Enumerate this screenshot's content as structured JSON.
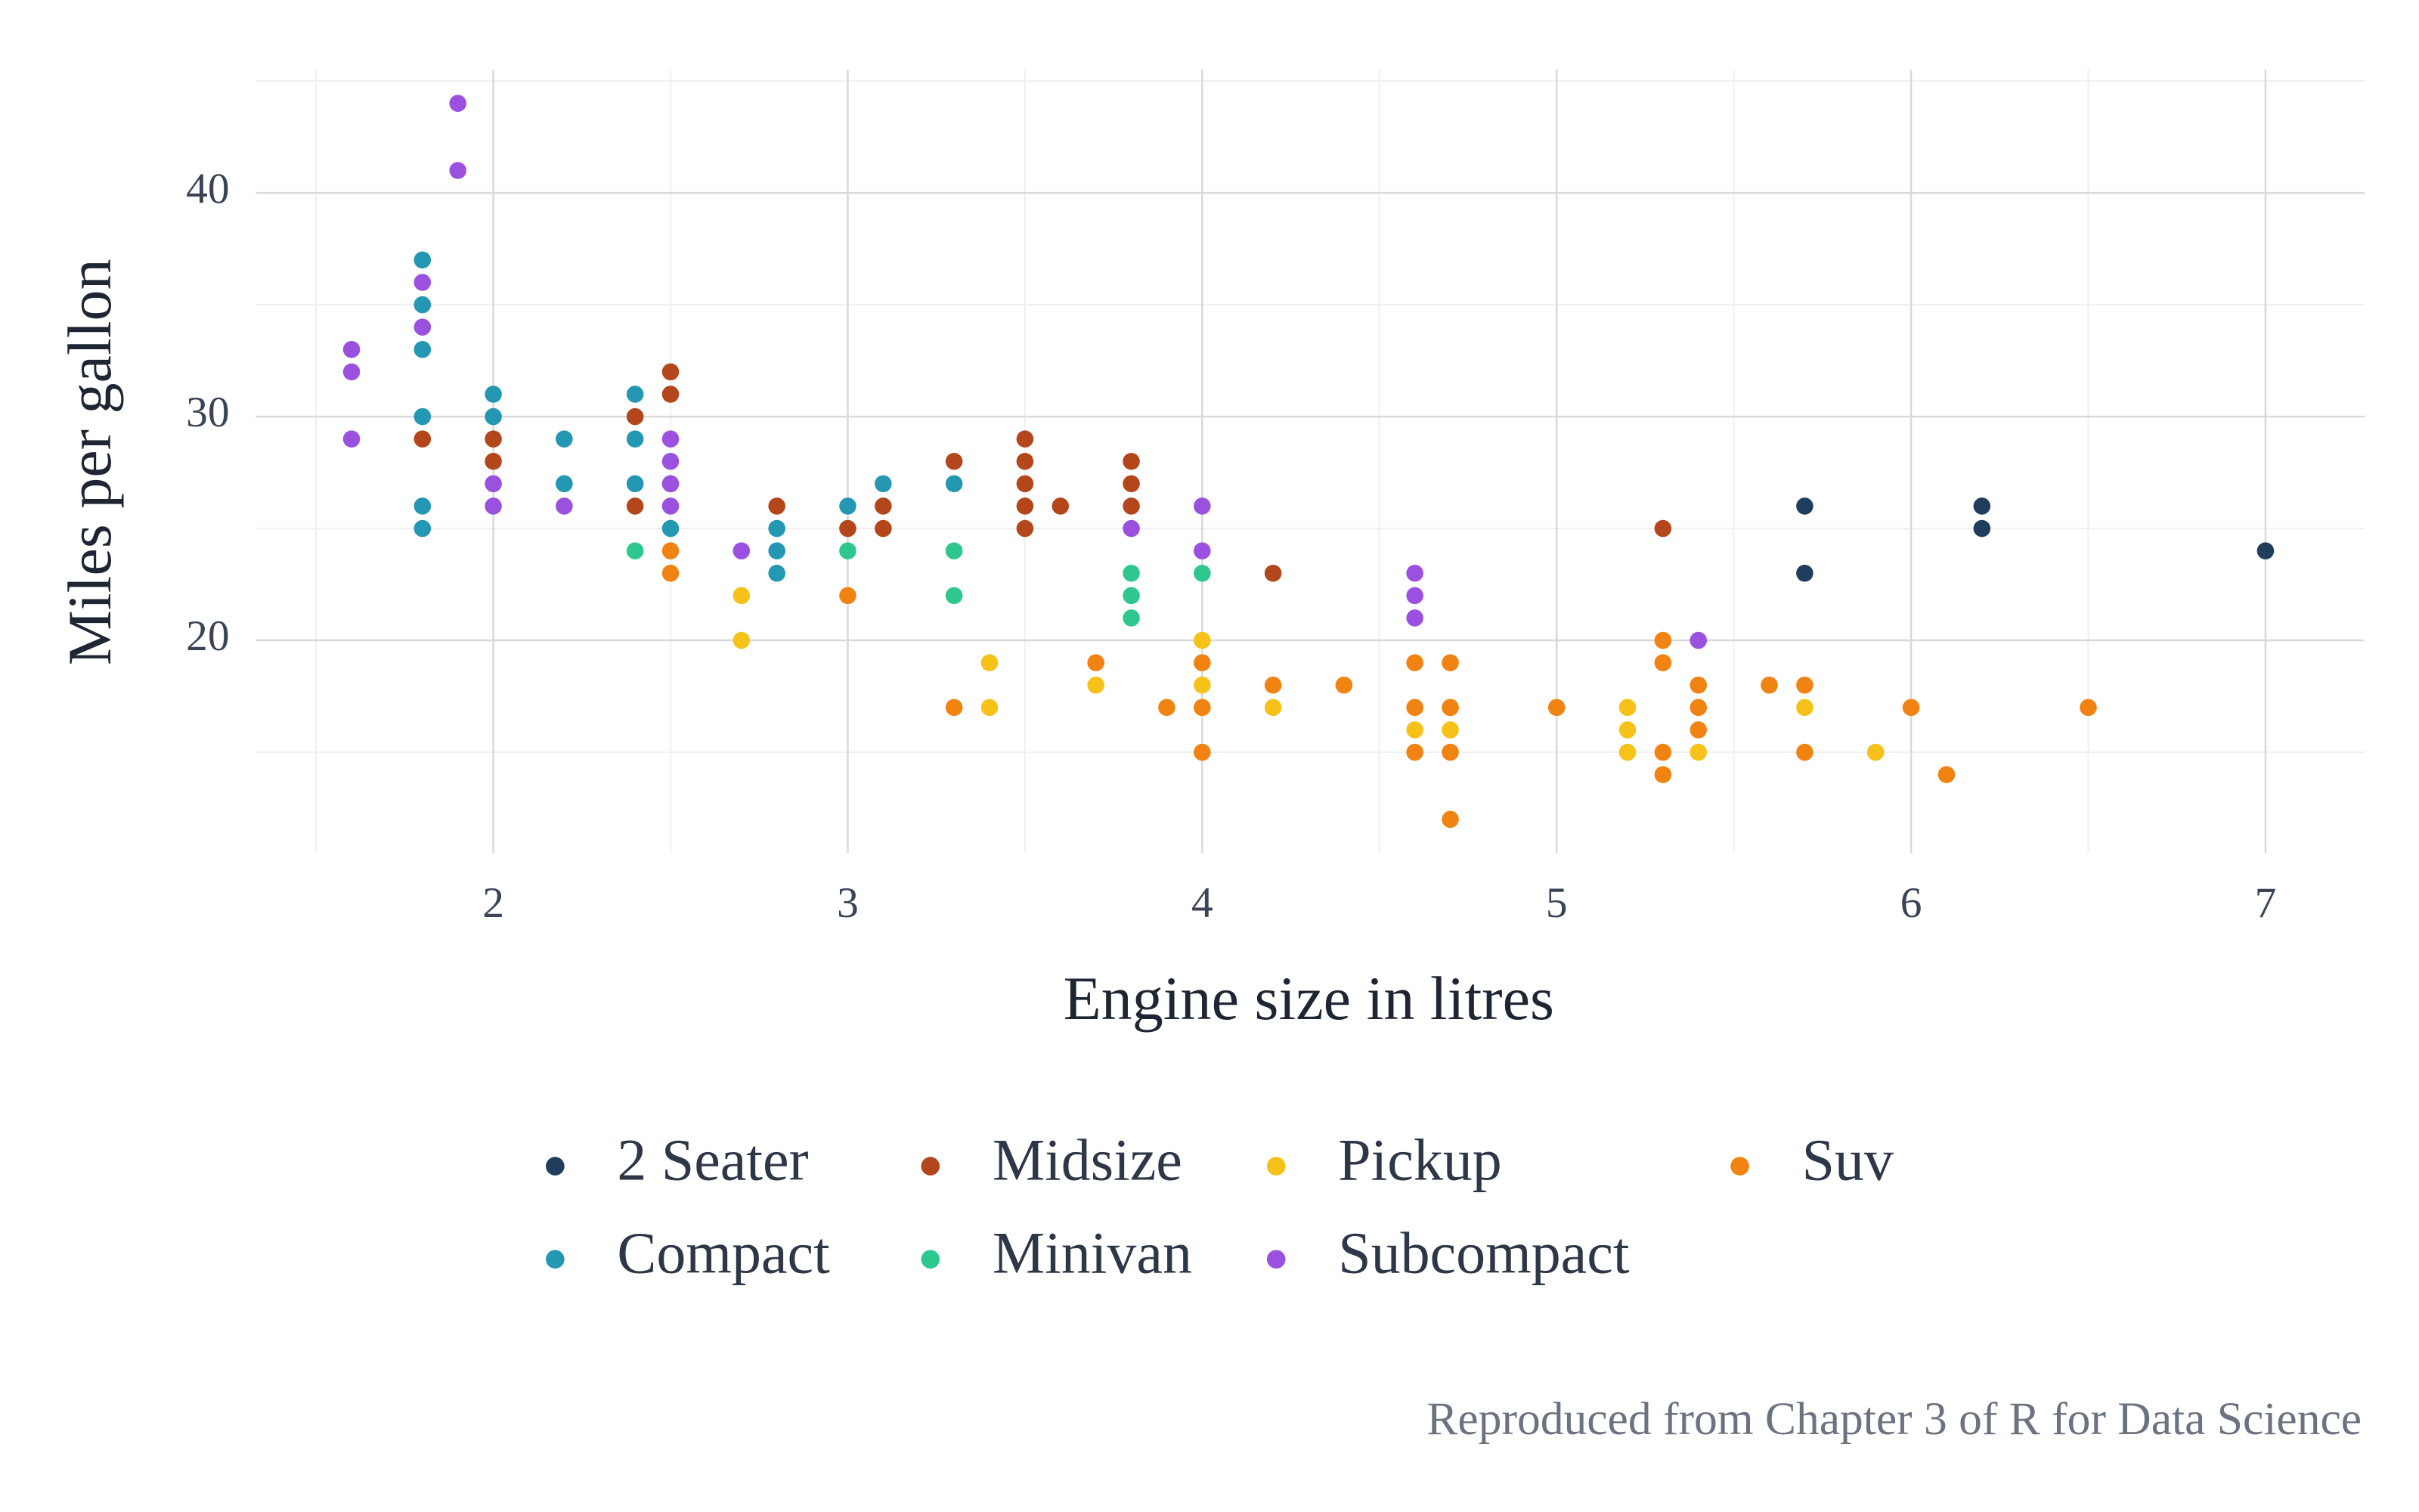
{
  "chart_data": {
    "type": "scatter",
    "x_label": "Engine size in litres",
    "y_label": "Miles per gallon",
    "caption": "Reproduced from Chapter 3 of R for Data Science",
    "xlim": [
      1.33,
      7.28
    ],
    "ylim": [
      10.5,
      45.5
    ],
    "xticks": [
      2,
      3,
      4,
      5,
      6,
      7
    ],
    "yticks": [
      20,
      30,
      40
    ],
    "x_minor_ticks": [
      1.5,
      2.5,
      3.5,
      4.5,
      5.5,
      6.5
    ],
    "y_minor_ticks": [
      15,
      25,
      35,
      45
    ],
    "grid": true,
    "legend": "bottom",
    "series": [
      {
        "name": "2 Seater",
        "color": "#1f3d5c",
        "x": [
          5.7,
          5.7,
          6.2,
          6.2,
          7.0
        ],
        "y": [
          26,
          23,
          26,
          25,
          24
        ]
      },
      {
        "name": "Compact",
        "color": "#2497b2",
        "x": [
          1.8,
          1.8,
          1.8,
          1.8,
          1.8,
          1.8,
          2.0,
          2.0,
          2.2,
          2.2,
          2.4,
          2.4,
          2.4,
          2.5,
          2.5,
          2.8,
          2.8,
          2.8,
          3.0,
          3.1,
          3.3
        ],
        "y": [
          37,
          35,
          33,
          30,
          26,
          25,
          31,
          30,
          29,
          27,
          31,
          29,
          27,
          27,
          25,
          25,
          24,
          23,
          26,
          27,
          27
        ]
      },
      {
        "name": "Midsize",
        "color": "#b4461c",
        "x": [
          1.8,
          2.0,
          2.0,
          2.4,
          2.4,
          2.5,
          2.5,
          2.8,
          3.0,
          3.1,
          3.1,
          3.3,
          3.5,
          3.5,
          3.5,
          3.5,
          3.5,
          3.6,
          3.8,
          3.8,
          3.8,
          4.2,
          5.3
        ],
        "y": [
          29,
          29,
          28,
          30,
          26,
          32,
          31,
          26,
          25,
          26,
          25,
          28,
          29,
          28,
          27,
          26,
          25,
          26,
          28,
          27,
          26,
          23,
          25
        ]
      },
      {
        "name": "Minivan",
        "color": "#2ec88e",
        "x": [
          2.4,
          3.0,
          3.3,
          3.3,
          3.8,
          3.8,
          3.8,
          4.0
        ],
        "y": [
          24,
          24,
          24,
          22,
          23,
          22,
          21,
          23
        ]
      },
      {
        "name": "Pickup",
        "color": "#f6c21a",
        "x": [
          2.7,
          2.7,
          3.4,
          3.4,
          3.7,
          4.0,
          4.0,
          4.0,
          4.2,
          4.6,
          4.6,
          4.7,
          4.7,
          5.2,
          5.2,
          5.2,
          5.4,
          5.7,
          5.9
        ],
        "y": [
          22,
          20,
          19,
          17,
          18,
          20,
          18,
          17,
          17,
          17,
          16,
          17,
          16,
          17,
          16,
          15,
          15,
          17,
          15
        ]
      },
      {
        "name": "Subcompact",
        "color": "#9b51df",
        "x": [
          1.6,
          1.6,
          1.6,
          1.8,
          1.8,
          1.9,
          1.9,
          2.0,
          2.0,
          2.2,
          2.5,
          2.5,
          2.5,
          2.5,
          2.7,
          3.8,
          4.0,
          4.0,
          4.6,
          4.6,
          4.6,
          5.4
        ],
        "y": [
          33,
          32,
          29,
          36,
          34,
          44,
          41,
          27,
          26,
          26,
          29,
          28,
          27,
          26,
          24,
          25,
          26,
          24,
          23,
          22,
          21,
          20
        ]
      },
      {
        "name": "Suv",
        "color": "#f08312",
        "x": [
          2.5,
          2.5,
          3.0,
          3.3,
          3.7,
          3.9,
          4.0,
          4.0,
          4.0,
          4.2,
          4.4,
          4.6,
          4.6,
          4.6,
          4.7,
          4.7,
          4.7,
          4.7,
          5.0,
          5.3,
          5.3,
          5.3,
          5.3,
          5.4,
          5.4,
          5.4,
          5.6,
          5.7,
          5.7,
          6.0,
          6.1,
          6.5
        ],
        "y": [
          24,
          23,
          22,
          17,
          19,
          17,
          19,
          17,
          15,
          18,
          18,
          19,
          17,
          15,
          19,
          17,
          15,
          12,
          17,
          20,
          19,
          15,
          14,
          18,
          17,
          16,
          18,
          18,
          15,
          17,
          14,
          17
        ]
      }
    ]
  }
}
